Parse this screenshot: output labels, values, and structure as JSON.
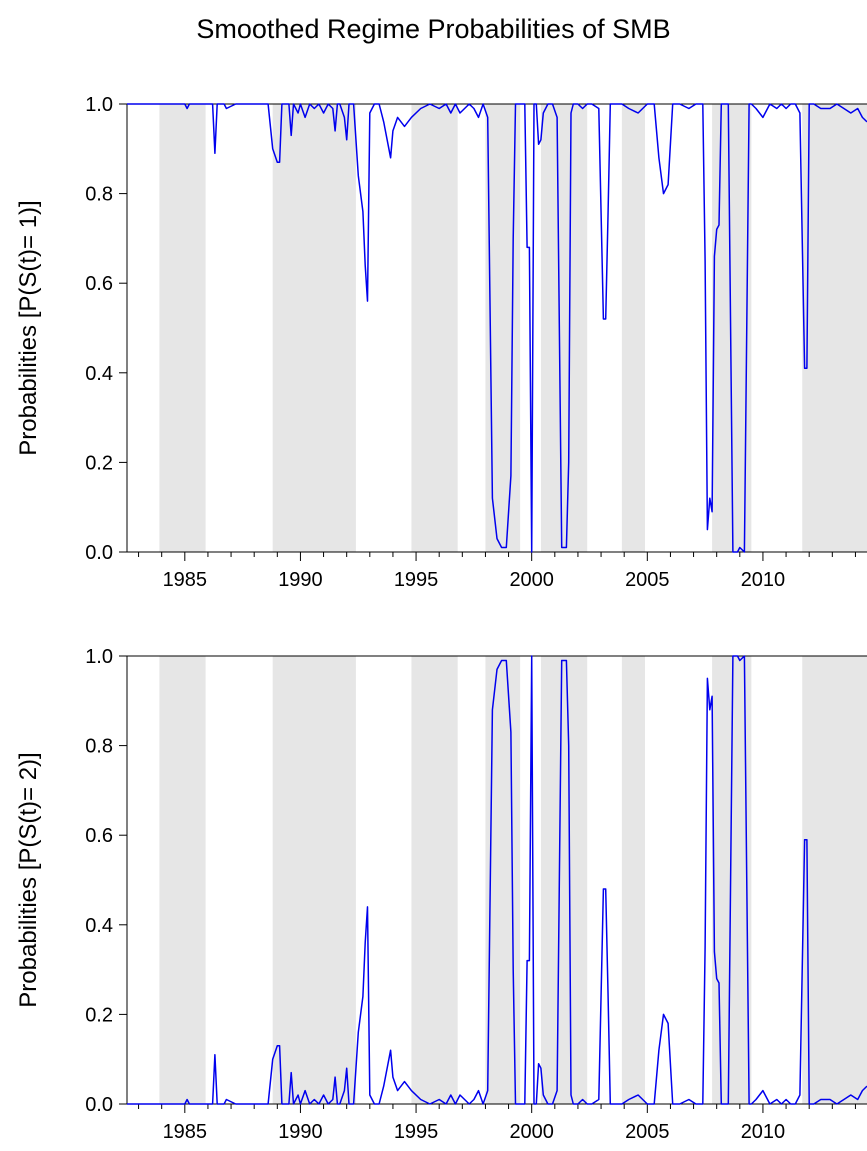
{
  "title": "Smoothed Regime Probabilities of SMB",
  "colors": {
    "line": "#0000ee",
    "shade": "#e6e6e6",
    "axis": "#000000"
  },
  "chart_data": [
    {
      "type": "line",
      "ylabel": "Probabilities [P(S(t)= 1)]",
      "xlim": [
        1982.5,
        2014.5
      ],
      "ylim": [
        0.0,
        1.0
      ],
      "x_ticks": [
        1985,
        1990,
        1995,
        2000,
        2005,
        2010
      ],
      "x_tick_labels": [
        "1985",
        "1990",
        "1995",
        "2000",
        "2005",
        "2010"
      ],
      "y_ticks": [
        0.0,
        0.2,
        0.4,
        0.6,
        0.8,
        1.0
      ],
      "y_tick_labels": [
        "0.0",
        "0.2",
        "0.4",
        "0.6",
        "0.8",
        "1.0"
      ],
      "shaded_periods": [
        [
          1983.9,
          1985.9
        ],
        [
          1988.8,
          1992.4
        ],
        [
          1994.8,
          1996.8
        ],
        [
          1998.0,
          1999.5
        ],
        [
          2000.4,
          2002.4
        ],
        [
          2003.9,
          2004.9
        ],
        [
          2007.8,
          2009.5
        ],
        [
          2011.7,
          2014.5
        ]
      ],
      "series": [
        {
          "x": [
            1982.5,
            1985.0,
            1985.1,
            1985.2,
            1986.2,
            1986.3,
            1986.4,
            1986.7,
            1986.8,
            1987.2,
            1988.3,
            1988.6,
            1988.8,
            1989.0,
            1989.1,
            1989.2,
            1989.5,
            1989.6,
            1989.7,
            1989.9,
            1990.0,
            1990.2,
            1990.4,
            1990.6,
            1990.8,
            1991.0,
            1991.2,
            1991.4,
            1991.5,
            1991.6,
            1991.7,
            1991.9,
            1992.0,
            1992.1,
            1992.3,
            1992.5,
            1992.7,
            1992.8,
            1992.9,
            1993.0,
            1993.2,
            1993.4,
            1993.6,
            1993.9,
            1994.0,
            1994.2,
            1994.5,
            1994.8,
            1995.2,
            1995.6,
            1996.0,
            1996.3,
            1996.5,
            1996.7,
            1996.9,
            1997.1,
            1997.3,
            1997.5,
            1997.7,
            1997.9,
            1998.1,
            1998.3,
            1998.5,
            1998.7,
            1998.9,
            1999.1,
            1999.2,
            1999.3,
            1999.5,
            1999.7,
            1999.8,
            1999.9,
            2000.0,
            2000.1,
            2000.2,
            2000.3,
            2000.4,
            2000.5,
            2000.7,
            2000.9,
            2001.1,
            2001.3,
            2001.5,
            2001.6,
            2001.7,
            2001.8,
            2002.0,
            2002.2,
            2002.4,
            2002.6,
            2002.9,
            2003.1,
            2003.2,
            2003.3,
            2003.4,
            2003.5,
            2003.7,
            2003.9,
            2004.2,
            2004.6,
            2005.0,
            2005.3,
            2005.5,
            2005.7,
            2005.9,
            2006.1,
            2006.4,
            2006.8,
            2007.1,
            2007.4,
            2007.5,
            2007.6,
            2007.7,
            2007.8,
            2007.9,
            2008.0,
            2008.1,
            2008.2,
            2008.3,
            2008.5,
            2008.7,
            2008.8,
            2008.9,
            2009.0,
            2009.2,
            2009.4,
            2009.5,
            2009.7,
            2010.0,
            2010.3,
            2010.6,
            2010.8,
            2011.0,
            2011.2,
            2011.4,
            2011.6,
            2011.8,
            2011.9,
            2012.0,
            2012.2,
            2012.5,
            2012.9,
            2013.2,
            2013.5,
            2013.8,
            2014.1,
            2014.3,
            2014.5
          ],
          "y": [
            1.0,
            1.0,
            0.99,
            1.0,
            1.0,
            0.89,
            1.0,
            1.0,
            0.99,
            1.0,
            1.0,
            1.0,
            0.9,
            0.87,
            0.87,
            1.0,
            1.0,
            0.93,
            1.0,
            0.98,
            1.0,
            0.97,
            1.0,
            0.99,
            1.0,
            0.98,
            1.0,
            0.99,
            0.94,
            1.0,
            1.0,
            0.97,
            0.92,
            1.0,
            1.0,
            0.84,
            0.76,
            0.64,
            0.56,
            0.98,
            1.0,
            1.0,
            0.96,
            0.88,
            0.94,
            0.97,
            0.95,
            0.97,
            0.99,
            1.0,
            0.99,
            1.0,
            0.98,
            1.0,
            0.98,
            0.99,
            1.0,
            0.99,
            0.97,
            1.0,
            0.97,
            0.12,
            0.03,
            0.01,
            0.01,
            0.17,
            0.7,
            1.0,
            1.0,
            1.0,
            0.68,
            0.68,
            0.0,
            1.0,
            1.0,
            0.91,
            0.92,
            0.98,
            1.0,
            1.0,
            0.97,
            0.01,
            0.01,
            0.2,
            0.98,
            1.0,
            1.0,
            0.99,
            1.0,
            1.0,
            0.99,
            0.52,
            0.52,
            0.75,
            1.0,
            1.0,
            1.0,
            1.0,
            0.99,
            0.98,
            1.0,
            1.0,
            0.88,
            0.8,
            0.82,
            1.0,
            1.0,
            0.99,
            1.0,
            1.0,
            0.65,
            0.05,
            0.12,
            0.09,
            0.66,
            0.72,
            0.73,
            1.0,
            1.0,
            1.0,
            0.0,
            0.0,
            0.0,
            0.01,
            0.0,
            1.0,
            1.0,
            0.99,
            0.97,
            1.0,
            0.99,
            1.0,
            0.99,
            1.0,
            1.0,
            0.98,
            0.41,
            0.41,
            1.0,
            1.0,
            0.99,
            0.99,
            1.0,
            0.99,
            0.98,
            0.99,
            0.97,
            0.96
          ]
        }
      ]
    },
    {
      "type": "line",
      "ylabel": "Probabilities [P(S(t)= 2)]",
      "xlim": [
        1982.5,
        2014.5
      ],
      "ylim": [
        0.0,
        1.0
      ],
      "x_ticks": [
        1985,
        1990,
        1995,
        2000,
        2005,
        2010
      ],
      "x_tick_labels": [
        "1985",
        "1990",
        "1995",
        "2000",
        "2005",
        "2010"
      ],
      "y_ticks": [
        0.0,
        0.2,
        0.4,
        0.6,
        0.8,
        1.0
      ],
      "y_tick_labels": [
        "0.0",
        "0.2",
        "0.4",
        "0.6",
        "0.8",
        "1.0"
      ],
      "shaded_periods": [
        [
          1983.9,
          1985.9
        ],
        [
          1988.8,
          1992.4
        ],
        [
          1994.8,
          1996.8
        ],
        [
          1998.0,
          1999.5
        ],
        [
          2000.4,
          2002.4
        ],
        [
          2003.9,
          2004.9
        ],
        [
          2007.8,
          2009.5
        ],
        [
          2011.7,
          2014.5
        ]
      ],
      "series": [
        {
          "x": [
            1982.5,
            1985.0,
            1985.1,
            1985.2,
            1986.2,
            1986.3,
            1986.4,
            1986.7,
            1986.8,
            1987.2,
            1988.3,
            1988.6,
            1988.8,
            1989.0,
            1989.1,
            1989.2,
            1989.5,
            1989.6,
            1989.7,
            1989.9,
            1990.0,
            1990.2,
            1990.4,
            1990.6,
            1990.8,
            1991.0,
            1991.2,
            1991.4,
            1991.5,
            1991.6,
            1991.7,
            1991.9,
            1992.0,
            1992.1,
            1992.3,
            1992.5,
            1992.7,
            1992.8,
            1992.9,
            1993.0,
            1993.2,
            1993.4,
            1993.6,
            1993.9,
            1994.0,
            1994.2,
            1994.5,
            1994.8,
            1995.2,
            1995.6,
            1996.0,
            1996.3,
            1996.5,
            1996.7,
            1996.9,
            1997.1,
            1997.3,
            1997.5,
            1997.7,
            1997.9,
            1998.1,
            1998.3,
            1998.5,
            1998.7,
            1998.9,
            1999.1,
            1999.2,
            1999.3,
            1999.5,
            1999.7,
            1999.8,
            1999.9,
            2000.0,
            2000.1,
            2000.2,
            2000.3,
            2000.4,
            2000.5,
            2000.7,
            2000.9,
            2001.1,
            2001.3,
            2001.5,
            2001.6,
            2001.7,
            2001.8,
            2002.0,
            2002.2,
            2002.4,
            2002.6,
            2002.9,
            2003.1,
            2003.2,
            2003.3,
            2003.4,
            2003.5,
            2003.7,
            2003.9,
            2004.2,
            2004.6,
            2005.0,
            2005.3,
            2005.5,
            2005.7,
            2005.9,
            2006.1,
            2006.4,
            2006.8,
            2007.1,
            2007.4,
            2007.5,
            2007.6,
            2007.7,
            2007.8,
            2007.9,
            2008.0,
            2008.1,
            2008.2,
            2008.3,
            2008.5,
            2008.7,
            2008.8,
            2008.9,
            2009.0,
            2009.2,
            2009.4,
            2009.5,
            2009.7,
            2010.0,
            2010.3,
            2010.6,
            2010.8,
            2011.0,
            2011.2,
            2011.4,
            2011.6,
            2011.8,
            2011.9,
            2012.0,
            2012.2,
            2012.5,
            2012.9,
            2013.2,
            2013.5,
            2013.8,
            2014.1,
            2014.3,
            2014.5
          ],
          "y": [
            0.0,
            0.0,
            0.01,
            0.0,
            0.0,
            0.11,
            0.0,
            0.0,
            0.01,
            0.0,
            0.0,
            0.0,
            0.1,
            0.13,
            0.13,
            0.0,
            0.0,
            0.07,
            0.0,
            0.02,
            0.0,
            0.03,
            0.0,
            0.01,
            0.0,
            0.02,
            0.0,
            0.01,
            0.06,
            0.0,
            0.0,
            0.03,
            0.08,
            0.0,
            0.0,
            0.16,
            0.24,
            0.36,
            0.44,
            0.02,
            0.0,
            0.0,
            0.04,
            0.12,
            0.06,
            0.03,
            0.05,
            0.03,
            0.01,
            0.0,
            0.01,
            0.0,
            0.02,
            0.0,
            0.02,
            0.01,
            0.0,
            0.01,
            0.03,
            0.0,
            0.03,
            0.88,
            0.97,
            0.99,
            0.99,
            0.83,
            0.3,
            0.0,
            0.0,
            0.0,
            0.32,
            0.32,
            1.0,
            0.0,
            0.0,
            0.09,
            0.08,
            0.02,
            0.0,
            0.0,
            0.03,
            0.99,
            0.99,
            0.8,
            0.02,
            0.0,
            0.0,
            0.01,
            0.0,
            0.0,
            0.01,
            0.48,
            0.48,
            0.25,
            0.0,
            0.0,
            0.0,
            0.0,
            0.01,
            0.02,
            0.0,
            0.0,
            0.12,
            0.2,
            0.18,
            0.0,
            0.0,
            0.01,
            0.0,
            0.0,
            0.35,
            0.95,
            0.88,
            0.91,
            0.34,
            0.28,
            0.27,
            0.0,
            0.0,
            0.0,
            1.0,
            1.0,
            1.0,
            0.99,
            1.0,
            0.0,
            0.0,
            0.01,
            0.03,
            0.0,
            0.01,
            0.0,
            0.01,
            0.0,
            0.0,
            0.02,
            0.59,
            0.59,
            0.0,
            0.0,
            0.01,
            0.01,
            0.0,
            0.01,
            0.02,
            0.01,
            0.03,
            0.04
          ]
        }
      ]
    }
  ]
}
